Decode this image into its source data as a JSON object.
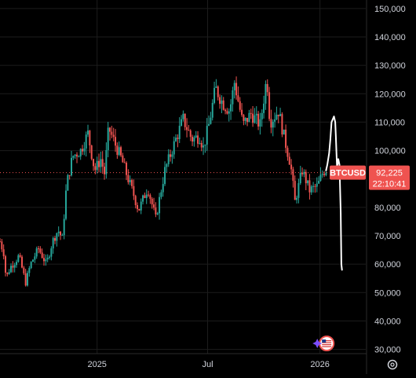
{
  "chart_data": {
    "type": "candlestick",
    "symbol": "BTCUSD",
    "last_price": "92,225",
    "countdown": "22:10:41",
    "colors": {
      "background": "#000000",
      "grid": "#1c1c1c",
      "up": "#26a69a",
      "down": "#ef5350",
      "price_line": "#ef5350",
      "axis_text": "#d1d4dc",
      "projection": "#ffffff"
    },
    "y_axis": {
      "ticks": [
        "30,000",
        "40,000",
        "50,000",
        "60,000",
        "70,000",
        "80,000",
        "90,000",
        "100,000",
        "110,000",
        "120,000",
        "130,000",
        "140,000",
        "150,000"
      ],
      "tick_values": [
        30000,
        40000,
        50000,
        60000,
        70000,
        80000,
        90000,
        100000,
        110000,
        120000,
        130000,
        140000,
        150000
      ],
      "range": [
        28500,
        153000
      ]
    },
    "x_axis": {
      "ticks": [
        "2025",
        "Jul",
        "2026"
      ],
      "tick_dates": [
        "2025-01-01",
        "2025-07-01",
        "2026-01-01"
      ],
      "range": [
        "2024-07-26",
        "2026-03-17"
      ]
    },
    "price_series": [
      [
        "2024-07-26",
        68000
      ],
      [
        "2024-08-01",
        64000
      ],
      [
        "2024-08-05",
        55000
      ],
      [
        "2024-08-12",
        59000
      ],
      [
        "2024-08-20",
        61000
      ],
      [
        "2024-08-26",
        63000
      ],
      [
        "2024-09-06",
        53500
      ],
      [
        "2024-09-14",
        60000
      ],
      [
        "2024-09-27",
        65500
      ],
      [
        "2024-10-10",
        60000
      ],
      [
        "2024-10-20",
        68000
      ],
      [
        "2024-10-29",
        72000
      ],
      [
        "2024-11-05",
        69000
      ],
      [
        "2024-11-12",
        88000
      ],
      [
        "2024-11-22",
        98000
      ],
      [
        "2024-12-05",
        100000
      ],
      [
        "2024-12-17",
        106000
      ],
      [
        "2024-12-28",
        93000
      ],
      [
        "2025-01-07",
        97000
      ],
      [
        "2025-01-13",
        92000
      ],
      [
        "2025-01-20",
        108000
      ],
      [
        "2025-01-31",
        102000
      ],
      [
        "2025-02-10",
        97000
      ],
      [
        "2025-02-24",
        88000
      ],
      [
        "2025-03-01",
        85000
      ],
      [
        "2025-03-10",
        79000
      ],
      [
        "2025-03-25",
        87000
      ],
      [
        "2025-04-07",
        76000
      ],
      [
        "2025-04-22",
        93000
      ],
      [
        "2025-05-10",
        104000
      ],
      [
        "2025-05-22",
        111000
      ],
      [
        "2025-06-05",
        104000
      ],
      [
        "2025-06-18",
        105000
      ],
      [
        "2025-06-24",
        101000
      ],
      [
        "2025-07-03",
        109000
      ],
      [
        "2025-07-14",
        122000
      ],
      [
        "2025-07-25",
        117000
      ],
      [
        "2025-08-06",
        114000
      ],
      [
        "2025-08-14",
        124000
      ],
      [
        "2025-08-28",
        109000
      ],
      [
        "2025-09-10",
        113000
      ],
      [
        "2025-09-25",
        109000
      ],
      [
        "2025-10-06",
        126000
      ],
      [
        "2025-10-11",
        110000
      ],
      [
        "2025-10-25",
        114000
      ],
      [
        "2025-11-04",
        104000
      ],
      [
        "2025-11-14",
        95000
      ],
      [
        "2025-11-21",
        82000
      ],
      [
        "2025-12-03",
        93000
      ],
      [
        "2025-12-15",
        86000
      ],
      [
        "2025-12-28",
        87500
      ],
      [
        "2026-01-07",
        93000
      ],
      [
        "2026-01-11",
        92225
      ]
    ],
    "projection": [
      [
        "2026-01-11",
        93000
      ],
      [
        "2026-01-13",
        95000
      ],
      [
        "2026-01-16",
        99000
      ],
      [
        "2026-01-18",
        104000
      ],
      [
        "2026-01-20",
        110000
      ],
      [
        "2026-01-24",
        112000
      ],
      [
        "2026-01-26",
        110000
      ],
      [
        "2026-01-27",
        105000
      ],
      [
        "2026-01-28",
        99000
      ],
      [
        "2026-01-29",
        94000
      ],
      [
        "2026-01-31",
        97000
      ],
      [
        "2026-02-02",
        95000
      ],
      [
        "2026-02-04",
        78000
      ],
      [
        "2026-02-05",
        60000
      ],
      [
        "2026-02-06",
        58000
      ]
    ],
    "annotation": {
      "date": "2026-01-12",
      "icon": "us-flag-event-icon"
    }
  }
}
